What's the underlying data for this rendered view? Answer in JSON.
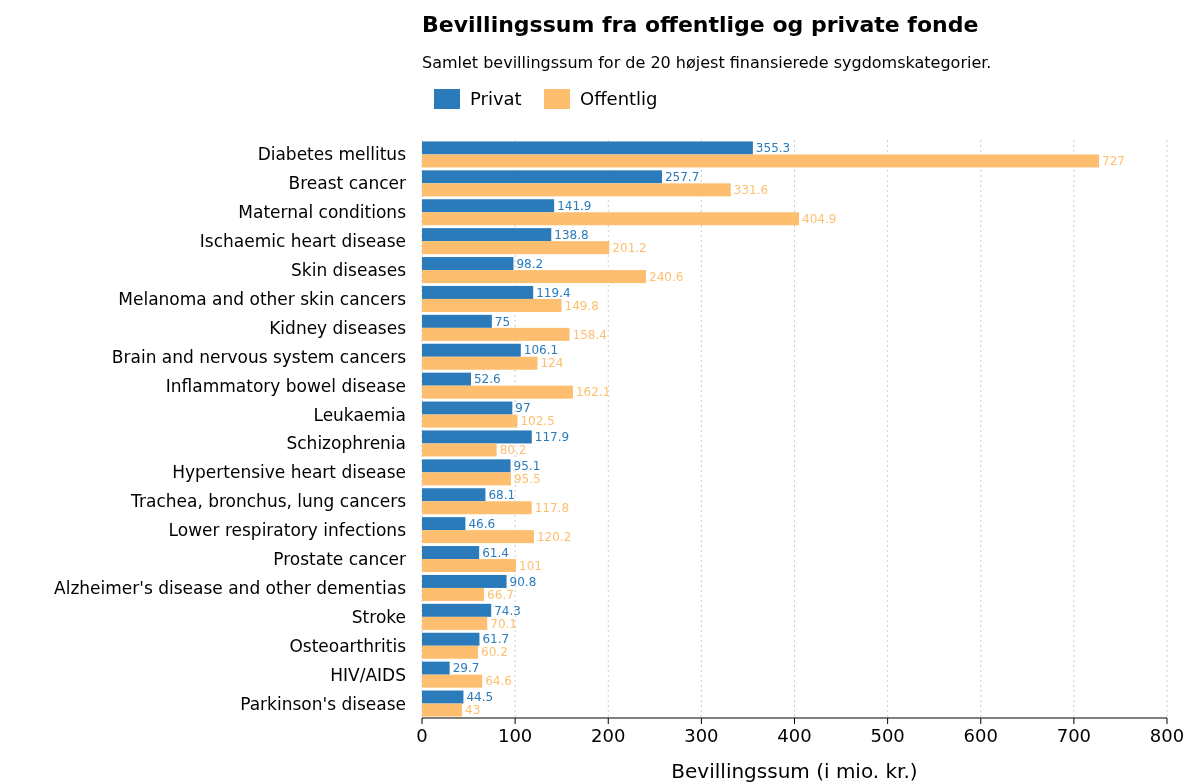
{
  "chart_data": {
    "type": "bar",
    "orientation": "horizontal",
    "title": "Bevillingssum fra offentlige og private fonde",
    "subtitle": "Samlet bevillingssum for de 20 højest finansierede sygdomskategorier.",
    "xlabel": "Bevillingssum (i mio. kr.)",
    "categories": [
      "Diabetes mellitus",
      "Breast cancer",
      "Maternal conditions",
      "Ischaemic heart disease",
      "Skin diseases",
      "Melanoma and other skin cancers",
      "Kidney diseases",
      "Brain and nervous system cancers",
      "Inflammatory bowel disease",
      "Leukaemia",
      "Schizophrenia",
      "Hypertensive heart disease",
      "Trachea, bronchus, lung cancers",
      "Lower respiratory infections",
      "Prostate cancer",
      "Alzheimer's disease and other dementias",
      "Stroke",
      "Osteoarthritis",
      "HIV/AIDS",
      "Parkinson's disease"
    ],
    "series": [
      {
        "name": "Privat",
        "color": "#2b7bba",
        "values": [
          355.3,
          257.7,
          141.9,
          138.8,
          98.2,
          119.4,
          75,
          106.1,
          52.6,
          97,
          117.9,
          95.1,
          68.1,
          46.6,
          61.4,
          90.8,
          74.3,
          61.7,
          29.7,
          44.5
        ]
      },
      {
        "name": "Offentlig",
        "color": "#fdbf6f",
        "values": [
          727,
          331.6,
          404.9,
          201.2,
          240.6,
          149.8,
          158.4,
          124,
          162.1,
          102.5,
          80.2,
          95.5,
          117.8,
          120.2,
          101,
          66.7,
          70.1,
          60.2,
          64.6,
          43
        ]
      }
    ],
    "xlim": [
      0,
      800
    ],
    "xticks": [
      0,
      100,
      200,
      300,
      400,
      500,
      600,
      700,
      800
    ],
    "grid": "x",
    "legend": "top left",
    "data_labels": true
  }
}
